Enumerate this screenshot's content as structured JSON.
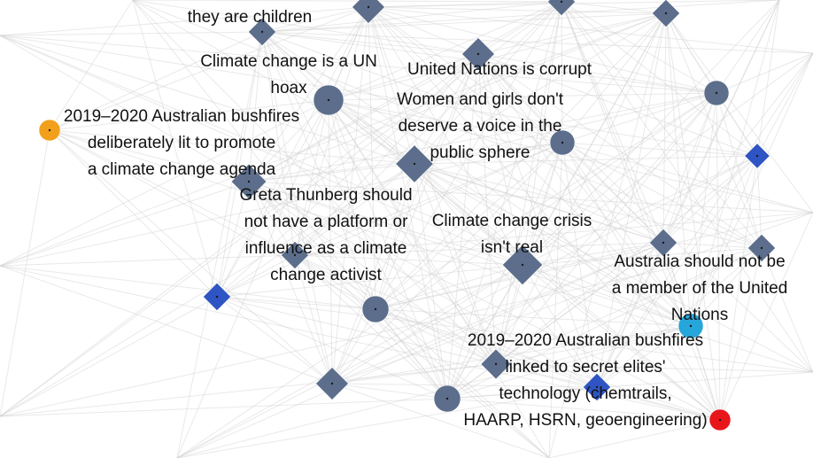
{
  "colors": {
    "background": "#ffffff",
    "edge": "#cfcfcf",
    "slate_node": "#5c6e8c",
    "blue_node": "#2f55c4",
    "orange_node": "#f2a01b",
    "cyan_node": "#27a6dc",
    "red_node": "#e8151b"
  },
  "labels": [
    "they are children",
    "Climate change is a UN\nhoax",
    "United Nations is corrupt",
    "Women and girls don't\ndeserve a voice in the\npublic sphere",
    "2019–2020 Australian bushfires\ndeliberately lit to promote\na climate change agenda",
    "Greta Thunberg should\nnot have a platform or\ninfluence as a climate\nchange activist",
    "Climate change crisis\nisn't real",
    "Australia should not be\na member of the United\nNations",
    "2019–2020 Australian bushfires\nlinked to secret elites'\ntechnology (chemtrails,\nHAARP, HSRN, geoengineering)"
  ],
  "node_types": {
    "slate_diamond": "theme node (diamond)",
    "slate_circle": "theme node (circle)",
    "blue_diamond": "highlighted diamond",
    "orange_circle": "highlighted circle",
    "cyan_circle": "highlighted circle",
    "red_circle": "highlighted circle"
  }
}
